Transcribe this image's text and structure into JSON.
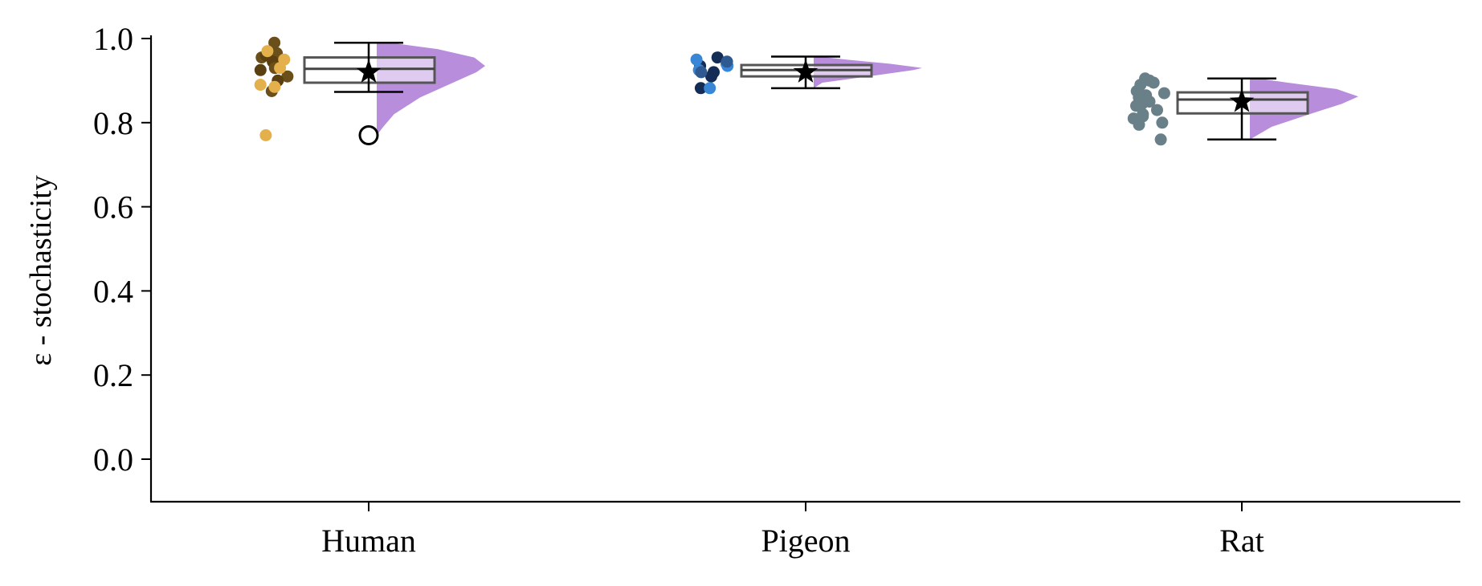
{
  "chart_data": {
    "type": "raincloud",
    "ylabel": "ε - stochasticity",
    "ylim": [
      -0.1,
      1.0
    ],
    "yticks": [
      "0.0",
      "0.2",
      "0.4",
      "0.6",
      "0.8",
      "1.0"
    ],
    "categories": [
      "Human",
      "Pigeon",
      "Rat"
    ],
    "grid": false,
    "violin_color": "#b78ddc",
    "groups": [
      {
        "name": "Human",
        "box": {
          "q1": 0.895,
          "median": 0.928,
          "q3": 0.955,
          "whisker_low": 0.873,
          "whisker_high": 0.99
        },
        "mean": 0.92,
        "outliers": [
          0.77
        ],
        "points": [
          {
            "y": 0.99,
            "c": "#6b4f1a"
          },
          {
            "y": 0.965,
            "c": "#6b4f1a"
          },
          {
            "y": 0.955,
            "c": "#6b4f1a"
          },
          {
            "y": 0.96,
            "c": "#5a3f10"
          },
          {
            "y": 0.945,
            "c": "#5a3f10"
          },
          {
            "y": 0.93,
            "c": "#6b4f1a"
          },
          {
            "y": 0.925,
            "c": "#5a3f10"
          },
          {
            "y": 0.91,
            "c": "#6b4f1a"
          },
          {
            "y": 0.9,
            "c": "#5a3f10"
          },
          {
            "y": 0.875,
            "c": "#6b4f1a"
          },
          {
            "y": 0.97,
            "c": "#e3b04b"
          },
          {
            "y": 0.95,
            "c": "#e3b04b"
          },
          {
            "y": 0.93,
            "c": "#e3b04b"
          },
          {
            "y": 0.89,
            "c": "#e3b04b"
          },
          {
            "y": 0.885,
            "c": "#e3b04b"
          },
          {
            "y": 0.77,
            "c": "#e3b04b"
          }
        ],
        "violin": [
          [
            0.77,
            0.0
          ],
          [
            0.79,
            0.06
          ],
          [
            0.82,
            0.16
          ],
          [
            0.86,
            0.4
          ],
          [
            0.89,
            0.66
          ],
          [
            0.92,
            0.92
          ],
          [
            0.935,
            1.0
          ],
          [
            0.955,
            0.9
          ],
          [
            0.975,
            0.56
          ],
          [
            0.99,
            0.12
          ]
        ]
      },
      {
        "name": "Pigeon",
        "box": {
          "q1": 0.91,
          "median": 0.925,
          "q3": 0.937,
          "whisker_low": 0.882,
          "whisker_high": 0.957
        },
        "mean": 0.92,
        "outliers": [],
        "points": [
          {
            "y": 0.955,
            "c": "#142d56"
          },
          {
            "y": 0.935,
            "c": "#142d56"
          },
          {
            "y": 0.92,
            "c": "#142d56"
          },
          {
            "y": 0.91,
            "c": "#142d56"
          },
          {
            "y": 0.882,
            "c": "#142d56"
          },
          {
            "y": 0.95,
            "c": "#3a86d6"
          },
          {
            "y": 0.94,
            "c": "#3a86d6"
          },
          {
            "y": 0.935,
            "c": "#3a86d6"
          },
          {
            "y": 0.925,
            "c": "#3a86d6"
          },
          {
            "y": 0.882,
            "c": "#3a86d6"
          },
          {
            "y": 0.945,
            "c": "#2e5a91"
          },
          {
            "y": 0.92,
            "c": "#2e5a91"
          }
        ],
        "violin": [
          [
            0.882,
            0.0
          ],
          [
            0.895,
            0.08
          ],
          [
            0.91,
            0.5
          ],
          [
            0.925,
            0.92
          ],
          [
            0.93,
            1.0
          ],
          [
            0.94,
            0.7
          ],
          [
            0.95,
            0.3
          ],
          [
            0.957,
            0.05
          ]
        ]
      },
      {
        "name": "Rat",
        "box": {
          "q1": 0.822,
          "median": 0.855,
          "q3": 0.872,
          "whisker_low": 0.76,
          "whisker_high": 0.905
        },
        "mean": 0.85,
        "outliers": [],
        "points": [
          {
            "y": 0.905,
            "c": "#6a8089"
          },
          {
            "y": 0.9,
            "c": "#6a8089"
          },
          {
            "y": 0.895,
            "c": "#6a8089"
          },
          {
            "y": 0.89,
            "c": "#6a8089"
          },
          {
            "y": 0.875,
            "c": "#6a8089"
          },
          {
            "y": 0.87,
            "c": "#6a8089"
          },
          {
            "y": 0.865,
            "c": "#6a8089"
          },
          {
            "y": 0.86,
            "c": "#6a8089"
          },
          {
            "y": 0.85,
            "c": "#6a8089"
          },
          {
            "y": 0.845,
            "c": "#6a8089"
          },
          {
            "y": 0.84,
            "c": "#6a8089"
          },
          {
            "y": 0.83,
            "c": "#6a8089"
          },
          {
            "y": 0.82,
            "c": "#6a8089"
          },
          {
            "y": 0.815,
            "c": "#6a8089"
          },
          {
            "y": 0.81,
            "c": "#6a8089"
          },
          {
            "y": 0.8,
            "c": "#6a8089"
          },
          {
            "y": 0.795,
            "c": "#6a8089"
          },
          {
            "y": 0.76,
            "c": "#6a8089"
          }
        ],
        "violin": [
          [
            0.76,
            0.0
          ],
          [
            0.79,
            0.2
          ],
          [
            0.82,
            0.55
          ],
          [
            0.845,
            0.85
          ],
          [
            0.862,
            1.0
          ],
          [
            0.88,
            0.8
          ],
          [
            0.895,
            0.35
          ],
          [
            0.905,
            0.08
          ]
        ]
      }
    ]
  }
}
